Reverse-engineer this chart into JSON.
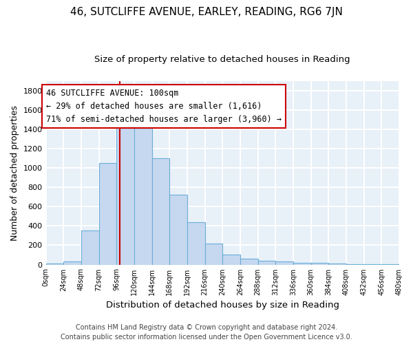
{
  "title": "46, SUTCLIFFE AVENUE, EARLEY, READING, RG6 7JN",
  "subtitle": "Size of property relative to detached houses in Reading",
  "xlabel": "Distribution of detached houses by size in Reading",
  "ylabel": "Number of detached properties",
  "bin_edges": [
    0,
    24,
    48,
    72,
    96,
    120,
    144,
    168,
    192,
    216,
    240,
    264,
    288,
    312,
    336,
    360,
    384,
    408,
    432,
    456,
    480
  ],
  "bar_heights": [
    10,
    30,
    350,
    1050,
    1450,
    1450,
    1100,
    720,
    435,
    215,
    105,
    60,
    40,
    30,
    20,
    15,
    10,
    5,
    3,
    2
  ],
  "bar_color": "#c5d8f0",
  "bar_edge_color": "#6aaed6",
  "vline_x": 100,
  "vline_color": "#cc0000",
  "ylim": [
    0,
    1900
  ],
  "yticks": [
    0,
    200,
    400,
    600,
    800,
    1000,
    1200,
    1400,
    1600,
    1800
  ],
  "xtick_labels": [
    "0sqm",
    "24sqm",
    "48sqm",
    "72sqm",
    "96sqm",
    "120sqm",
    "144sqm",
    "168sqm",
    "192sqm",
    "216sqm",
    "240sqm",
    "264sqm",
    "288sqm",
    "312sqm",
    "336sqm",
    "360sqm",
    "384sqm",
    "408sqm",
    "432sqm",
    "456sqm",
    "480sqm"
  ],
  "annotation_line1": "46 SUTCLIFFE AVENUE: 100sqm",
  "annotation_line2": "← 29% of detached houses are smaller (1,616)",
  "annotation_line3": "71% of semi-detached houses are larger (3,960) →",
  "bg_color": "#e8f0f8",
  "grid_color": "#ffffff",
  "footer_line1": "Contains HM Land Registry data © Crown copyright and database right 2024.",
  "footer_line2": "Contains public sector information licensed under the Open Government Licence v3.0.",
  "title_fontsize": 11,
  "subtitle_fontsize": 9.5,
  "xlabel_fontsize": 9.5,
  "ylabel_fontsize": 9,
  "annotation_fontsize": 8.5,
  "footer_fontsize": 7
}
